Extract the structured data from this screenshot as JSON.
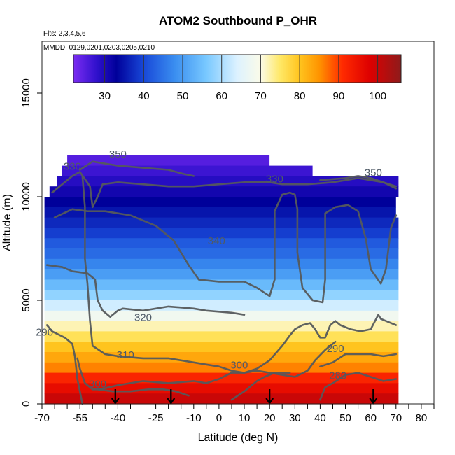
{
  "chart_data": {
    "type": "heatmap",
    "title": "ATOM2 Southbound P_OHR",
    "subtitle_flights": "Flts: 2,3,4,5,6",
    "subtitle_dates": "MMDD: 0129,0201,0203,0205,0210",
    "xlabel": "Latitude (deg N)",
    "ylabel": "Altitude (m)",
    "xlim": [
      -70,
      85
    ],
    "ylim": [
      0,
      17500
    ],
    "x_ticks": [
      -70,
      -55,
      -40,
      -25,
      -10,
      0,
      10,
      20,
      30,
      40,
      50,
      60,
      70,
      80
    ],
    "x_tick_labels": [
      "-70",
      "-55",
      "-40",
      "-25",
      "-10",
      "0",
      "10",
      "20",
      "30",
      "40",
      "50",
      "60",
      "70",
      "80"
    ],
    "y_ticks": [
      0,
      5000,
      10000,
      15000
    ],
    "y_tick_labels": [
      "0",
      "5000",
      "10000",
      "15000"
    ],
    "colorbar": {
      "min": 22,
      "max": 106,
      "ticks": [
        30,
        40,
        50,
        60,
        70,
        80,
        90,
        100
      ],
      "tick_labels": [
        "30",
        "40",
        "50",
        "60",
        "70",
        "80",
        "90",
        "100"
      ],
      "stops": [
        {
          "v": 22,
          "c": "#7b2cf2"
        },
        {
          "v": 28,
          "c": "#2f10cc"
        },
        {
          "v": 33,
          "c": "#00009a"
        },
        {
          "v": 40,
          "c": "#1848d8"
        },
        {
          "v": 48,
          "c": "#3a8ef0"
        },
        {
          "v": 56,
          "c": "#78c8ff"
        },
        {
          "v": 64,
          "c": "#ddf2ff"
        },
        {
          "v": 70,
          "c": "#fbfbe8"
        },
        {
          "v": 75,
          "c": "#ffe866"
        },
        {
          "v": 80,
          "c": "#ffc41e"
        },
        {
          "v": 85,
          "c": "#ff9400"
        },
        {
          "v": 91,
          "c": "#ff2a00"
        },
        {
          "v": 98,
          "c": "#dd0000"
        },
        {
          "v": 106,
          "c": "#8e1b1b"
        }
      ]
    },
    "heatmap_bands": [
      {
        "alt_top": 12000,
        "alt_bottom": 11500,
        "lat_start": -60,
        "lat_end": 20,
        "value": 25
      },
      {
        "alt_top": 11500,
        "alt_bottom": 11000,
        "lat_start": -62,
        "lat_end": 37,
        "value": 27
      },
      {
        "alt_top": 11000,
        "alt_bottom": 10500,
        "lat_start": -64,
        "lat_end": 71,
        "value": 29
      },
      {
        "alt_top": 10500,
        "alt_bottom": 10000,
        "lat_start": -67,
        "lat_end": 71,
        "value": 31
      },
      {
        "alt_top": 10000,
        "alt_bottom": 9500,
        "lat_start": -69,
        "lat_end": 70,
        "value": 33
      },
      {
        "alt_top": 9500,
        "alt_bottom": 9000,
        "lat_start": -69,
        "lat_end": 70,
        "value": 35
      },
      {
        "alt_top": 9000,
        "alt_bottom": 8500,
        "lat_start": -69,
        "lat_end": 71,
        "value": 37
      },
      {
        "alt_top": 8500,
        "alt_bottom": 8000,
        "lat_start": -69,
        "lat_end": 71,
        "value": 39
      },
      {
        "alt_top": 8000,
        "alt_bottom": 7500,
        "lat_start": -69,
        "lat_end": 71,
        "value": 42
      },
      {
        "alt_top": 7500,
        "alt_bottom": 7000,
        "lat_start": -69,
        "lat_end": 71,
        "value": 44
      },
      {
        "alt_top": 7000,
        "alt_bottom": 6500,
        "lat_start": -69,
        "lat_end": 71,
        "value": 47
      },
      {
        "alt_top": 6500,
        "alt_bottom": 6000,
        "lat_start": -69,
        "lat_end": 71,
        "value": 50
      },
      {
        "alt_top": 6000,
        "alt_bottom": 5500,
        "lat_start": -69,
        "lat_end": 71,
        "value": 54
      },
      {
        "alt_top": 5500,
        "alt_bottom": 5000,
        "lat_start": -69,
        "lat_end": 71,
        "value": 58
      },
      {
        "alt_top": 5000,
        "alt_bottom": 4500,
        "lat_start": -69,
        "lat_end": 71,
        "value": 63
      },
      {
        "alt_top": 4500,
        "alt_bottom": 4000,
        "lat_start": -69,
        "lat_end": 71,
        "value": 68
      },
      {
        "alt_top": 4000,
        "alt_bottom": 3500,
        "lat_start": -69,
        "lat_end": 71,
        "value": 72
      },
      {
        "alt_top": 3500,
        "alt_bottom": 3000,
        "lat_start": -69,
        "lat_end": 71,
        "value": 76
      },
      {
        "alt_top": 3000,
        "alt_bottom": 2500,
        "lat_start": -69,
        "lat_end": 71,
        "value": 80
      },
      {
        "alt_top": 2500,
        "alt_bottom": 2000,
        "lat_start": -69,
        "lat_end": 71,
        "value": 83
      },
      {
        "alt_top": 2000,
        "alt_bottom": 1500,
        "lat_start": -69,
        "lat_end": 71,
        "value": 86
      },
      {
        "alt_top": 1500,
        "alt_bottom": 1000,
        "lat_start": -69,
        "lat_end": 71,
        "value": 92
      },
      {
        "alt_top": 1000,
        "alt_bottom": 500,
        "lat_start": -69,
        "lat_end": 71,
        "value": 96
      },
      {
        "alt_top": 500,
        "alt_bottom": 0,
        "lat_start": -69,
        "lat_end": 71,
        "value": 100
      }
    ],
    "contours": [
      {
        "level": "350",
        "points": [
          [
            -55,
            11300
          ],
          [
            -50,
            11700
          ],
          [
            -40,
            11500
          ],
          [
            -30,
            11400
          ],
          [
            -20,
            11300
          ],
          [
            -14,
            11100
          ],
          [
            -10,
            11000
          ]
        ]
      },
      {
        "level": "350",
        "points": [
          [
            40,
            10800
          ],
          [
            50,
            10900
          ],
          [
            55,
            11000
          ],
          [
            60,
            10900
          ],
          [
            65,
            10700
          ],
          [
            70,
            10500
          ]
        ]
      },
      {
        "level": "330",
        "points": [
          [
            -66,
            10200
          ],
          [
            -62,
            10600
          ],
          [
            -58,
            11000
          ],
          [
            -55,
            11200
          ],
          [
            -51,
            10500
          ],
          [
            -50,
            9500
          ],
          [
            -48,
            10000
          ],
          [
            -46,
            10600
          ],
          [
            -40,
            10700
          ],
          [
            -30,
            10600
          ],
          [
            -20,
            10500
          ],
          [
            -10,
            10500
          ],
          [
            0,
            10600
          ],
          [
            10,
            10700
          ],
          [
            20,
            10700
          ],
          [
            25,
            10600
          ],
          [
            30,
            10600
          ],
          [
            35,
            10600
          ],
          [
            45,
            10700
          ],
          [
            55,
            10900
          ],
          [
            65,
            10700
          ],
          [
            70,
            10400
          ]
        ]
      },
      {
        "level": "340",
        "points": [
          [
            -65,
            9000
          ],
          [
            -58,
            9400
          ],
          [
            -52,
            9300
          ],
          [
            -45,
            9300
          ],
          [
            -35,
            9100
          ],
          [
            -25,
            8600
          ],
          [
            -18,
            7900
          ],
          [
            -12,
            6700
          ],
          [
            -8,
            6000
          ],
          [
            0,
            5900
          ],
          [
            10,
            5900
          ],
          [
            15,
            5600
          ],
          [
            20,
            5200
          ],
          [
            22,
            6000
          ],
          [
            22,
            9300
          ],
          [
            25,
            10100
          ],
          [
            28,
            10200
          ],
          [
            30,
            10100
          ],
          [
            31,
            9400
          ],
          [
            31,
            7300
          ],
          [
            33,
            5600
          ],
          [
            37,
            5000
          ],
          [
            41,
            4900
          ],
          [
            42,
            6000
          ],
          [
            42,
            9200
          ],
          [
            46,
            9500
          ],
          [
            51,
            9600
          ],
          [
            55,
            9300
          ],
          [
            58,
            8000
          ],
          [
            60,
            6500
          ],
          [
            64,
            5800
          ],
          [
            66,
            6500
          ],
          [
            68,
            8500
          ],
          [
            70,
            9100
          ]
        ]
      },
      {
        "level": "340",
        "points": [
          [
            -68,
            6700
          ],
          [
            -62,
            6600
          ],
          [
            -58,
            6400
          ],
          [
            -52,
            6300
          ],
          [
            -49,
            6000
          ],
          [
            -48,
            5000
          ],
          [
            -46,
            4500
          ],
          [
            -43,
            4200
          ],
          [
            -40,
            4500
          ],
          [
            -38,
            4600
          ],
          [
            -30,
            4500
          ],
          [
            -20,
            4700
          ],
          [
            -10,
            4600
          ],
          [
            -5,
            4500
          ],
          [
            5,
            4400
          ],
          [
            10,
            4300
          ]
        ]
      },
      {
        "level": "320",
        "points": [
          [
            -54,
            11000
          ],
          [
            -53,
            9500
          ],
          [
            -53,
            7000
          ],
          [
            -52,
            5800
          ],
          [
            -51,
            4000
          ],
          [
            -50,
            2800
          ],
          [
            -45,
            2400
          ],
          [
            -40,
            2300
          ],
          [
            -30,
            2200
          ],
          [
            -20,
            2200
          ],
          [
            -10,
            2000
          ],
          [
            -5,
            1900
          ],
          [
            0,
            1800
          ],
          [
            5,
            1600
          ],
          [
            10,
            1500
          ],
          [
            15,
            1700
          ],
          [
            20,
            2100
          ],
          [
            25,
            2800
          ],
          [
            28,
            3300
          ],
          [
            30,
            3600
          ],
          [
            33,
            3800
          ],
          [
            36,
            3900
          ],
          [
            38,
            3600
          ],
          [
            40,
            3200
          ],
          [
            42,
            3200
          ],
          [
            44,
            3800
          ],
          [
            46,
            4000
          ],
          [
            48,
            3800
          ],
          [
            52,
            3600
          ],
          [
            56,
            3500
          ],
          [
            60,
            3600
          ],
          [
            63,
            4300
          ],
          [
            64,
            4100
          ],
          [
            66,
            4000
          ],
          [
            70,
            3800
          ]
        ]
      },
      {
        "level": "310",
        "points": [
          [
            -56,
            2200
          ],
          [
            -55,
            1700
          ],
          [
            -53,
            1000
          ],
          [
            -50,
            700
          ],
          [
            -47,
            700
          ],
          [
            -40,
            900
          ],
          [
            -30,
            1100
          ],
          [
            -20,
            1000
          ],
          [
            -10,
            1100
          ],
          [
            -5,
            1000
          ],
          [
            0,
            1200
          ],
          [
            5,
            1500
          ],
          [
            10,
            1500
          ],
          [
            15,
            1600
          ],
          [
            20,
            1500
          ],
          [
            25,
            1400
          ],
          [
            30,
            1300
          ],
          [
            35,
            1600
          ],
          [
            38,
            2100
          ],
          [
            42,
            2600
          ],
          [
            46,
            3000
          ]
        ]
      },
      {
        "level": "300",
        "points": [
          [
            -48,
            700
          ],
          [
            -42,
            600
          ],
          [
            -35,
            600
          ],
          [
            -28,
            700
          ],
          [
            -22,
            700
          ],
          [
            -17,
            600
          ],
          [
            -12,
            400
          ]
        ]
      },
      {
        "level": "300",
        "points": [
          [
            5,
            200
          ],
          [
            10,
            600
          ],
          [
            15,
            1100
          ],
          [
            18,
            1300
          ],
          [
            22,
            1500
          ],
          [
            28,
            1500
          ]
        ]
      },
      {
        "level": "290",
        "points": [
          [
            -68,
            3800
          ],
          [
            -66,
            3500
          ],
          [
            -61,
            3200
          ],
          [
            -58,
            2900
          ],
          [
            -57,
            2300
          ],
          [
            -56,
            1200
          ],
          [
            -55,
            600
          ],
          [
            -54,
            0
          ]
        ]
      },
      {
        "level": "290",
        "points": [
          [
            40,
            1800
          ],
          [
            45,
            2000
          ],
          [
            50,
            2400
          ],
          [
            55,
            2400
          ],
          [
            60,
            2400
          ],
          [
            65,
            2300
          ],
          [
            70,
            2400
          ]
        ]
      },
      {
        "level": "280",
        "points": [
          [
            40,
            200
          ],
          [
            42,
            800
          ],
          [
            45,
            1000
          ],
          [
            50,
            1400
          ],
          [
            55,
            1500
          ],
          [
            60,
            1300
          ],
          [
            65,
            1100
          ],
          [
            70,
            1200
          ]
        ]
      }
    ],
    "contour_labels": [
      {
        "text": "350",
        "lat": -40,
        "alt": 11900
      },
      {
        "text": "350",
        "lat": 61,
        "alt": 11000
      },
      {
        "text": "330",
        "lat": -58,
        "alt": 11300
      },
      {
        "text": "330",
        "lat": 22,
        "alt": 10700
      },
      {
        "text": "340",
        "lat": -1,
        "alt": 7700
      },
      {
        "text": "320",
        "lat": -30,
        "alt": 4000
      },
      {
        "text": "310",
        "lat": -37,
        "alt": 2200
      },
      {
        "text": "300",
        "lat": -48,
        "alt": 800
      },
      {
        "text": "300",
        "lat": 8,
        "alt": 1700
      },
      {
        "text": "290",
        "lat": -69,
        "alt": 3300
      },
      {
        "text": "290",
        "lat": 46,
        "alt": 2500
      },
      {
        "text": "280",
        "lat": 47,
        "alt": 1200
      }
    ],
    "arrows": [
      {
        "lat": -41
      },
      {
        "lat": -19
      },
      {
        "lat": 20
      },
      {
        "lat": 61
      }
    ]
  }
}
